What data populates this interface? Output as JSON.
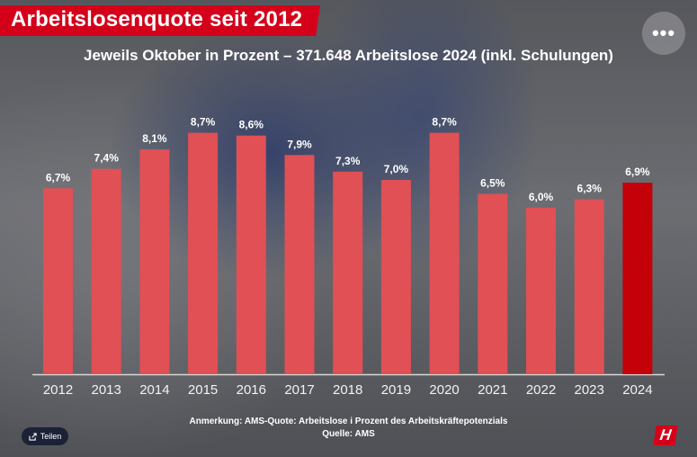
{
  "title": "Arbeitslosenquote seit 2012",
  "subtitle": "Jeweils Oktober in Prozent – 371.648 Arbeitslose 2024 (inkl. Schulungen)",
  "menu_icon": "more-horizontal-icon",
  "menu_label": "•••",
  "footnote_line1": "Anmerkung: AMS-Quote: Arbeitslose i Prozent des Arbeitskräftepotenzials",
  "footnote_line2": "Quelle: AMS",
  "share_label": "Teilen",
  "share_icon": "share-icon",
  "logo_text": "H",
  "colors": {
    "bar": "#e05055",
    "highlight": "#c40009",
    "brand": "#d4001a"
  },
  "chart_data": {
    "type": "bar",
    "categories": [
      "2012",
      "2013",
      "2014",
      "2015",
      "2016",
      "2017",
      "2018",
      "2019",
      "2020",
      "2021",
      "2022",
      "2023",
      "2024"
    ],
    "values": [
      6.7,
      7.4,
      8.1,
      8.7,
      8.6,
      7.9,
      7.3,
      7.0,
      8.7,
      6.5,
      6.0,
      6.3,
      6.9
    ],
    "labels": [
      "6,7%",
      "7,4%",
      "8,1%",
      "8,7%",
      "8,6%",
      "7,9%",
      "7,3%",
      "7,0%",
      "8,7%",
      "6,5%",
      "6,0%",
      "6,3%",
      "6,9%"
    ],
    "highlight_category": "2024",
    "title": "Jeweils Oktober in Prozent – 371.648 Arbeitslose 2024 (inkl. Schulungen)",
    "xlabel": "",
    "ylabel": "",
    "ylim": [
      0,
      9.4
    ],
    "grid": false,
    "legend": "none"
  }
}
